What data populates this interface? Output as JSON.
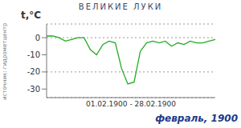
{
  "chart_data": {
    "type": "line",
    "title": "ВЕЛИКИЕ ЛУКИ",
    "subtitle": "февраль, 1900",
    "y_label": "t,°C",
    "x_label": "01.02.1900 - 28.02.1900",
    "source": "источник: гидрометцентр",
    "x": [
      1,
      2,
      3,
      4,
      5,
      6,
      7,
      8,
      9,
      10,
      11,
      12,
      13,
      14,
      15,
      16,
      17,
      18,
      19,
      20,
      21,
      22,
      23,
      24,
      25,
      26,
      27,
      28
    ],
    "values": [
      1,
      1,
      0,
      -2,
      -1,
      0,
      0,
      -7,
      -10,
      -4,
      -2,
      -3,
      -18,
      -27,
      -26,
      -8,
      -3,
      -2,
      -3,
      -2,
      -5,
      -3,
      -4,
      -2,
      -3,
      -3,
      -2,
      -1
    ],
    "color": "#22aa22",
    "xlim": [
      1,
      28
    ],
    "ylim": [
      -35,
      8
    ],
    "yticks": [
      -30,
      -20,
      -10,
      0
    ],
    "grid": true,
    "tick_labels": "y"
  }
}
